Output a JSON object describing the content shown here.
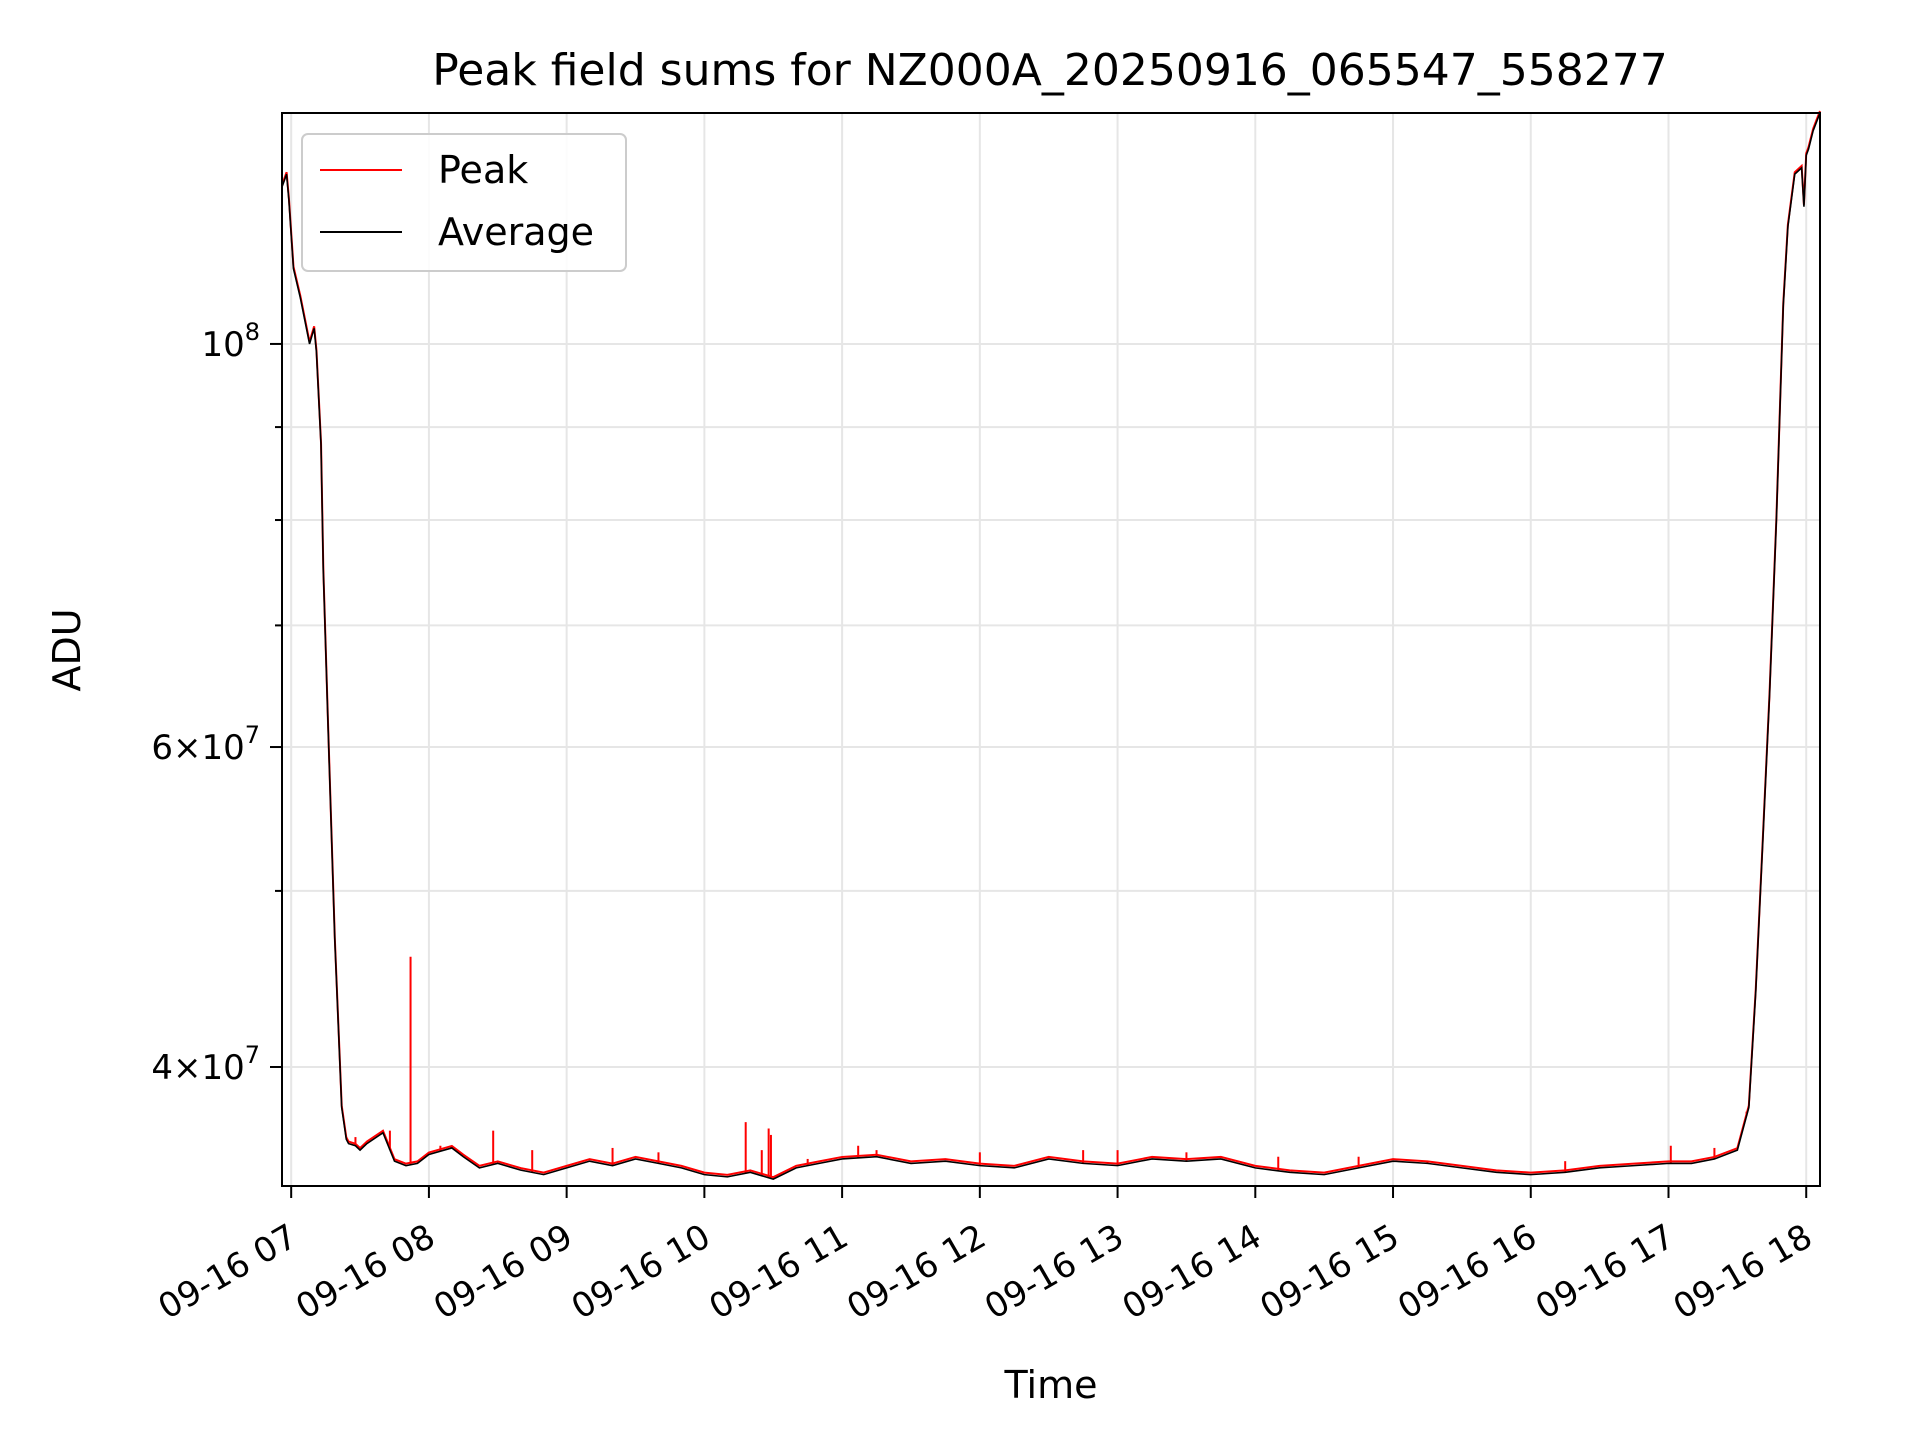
{
  "chart_data": {
    "type": "line",
    "title": "Peak field sums for NZ000A_20250916_065547_558277",
    "xlabel": "Time",
    "ylabel": "ADU",
    "yscale": "log",
    "ylim": [
      34400000,
      134000000
    ],
    "xlim": [
      "2025-09-16 06:56",
      "2025-09-16 18:06"
    ],
    "grid": true,
    "legend_position": "top-left",
    "x_ticks": [
      "09-16 07",
      "09-16 08",
      "09-16 09",
      "09-16 10",
      "09-16 11",
      "09-16 12",
      "09-16 13",
      "09-16 14",
      "09-16 15",
      "09-16 16",
      "09-16 17",
      "09-16 18"
    ],
    "y_major_ticks": [
      {
        "value": 40000000,
        "base": "4×10",
        "exp": "7"
      },
      {
        "value": 60000000,
        "base": "6×10",
        "exp": "7"
      },
      {
        "value": 100000000,
        "base": "10",
        "exp": "8"
      }
    ],
    "y_minor_ticks": [
      50000000,
      70000000,
      80000000,
      90000000
    ],
    "colors": {
      "peak": "#ff0000",
      "average": "#000000"
    },
    "series": [
      {
        "name": "Average",
        "color": "#000000",
        "x": [
          "2025-09-16 06:56",
          "2025-09-16 06:58",
          "2025-09-16 06:59",
          "2025-09-16 07:01",
          "2025-09-16 07:04",
          "2025-09-16 07:08",
          "2025-09-16 07:10",
          "2025-09-16 07:11",
          "2025-09-16 07:13",
          "2025-09-16 07:14",
          "2025-09-16 07:16",
          "2025-09-16 07:19",
          "2025-09-16 07:22",
          "2025-09-16 07:24",
          "2025-09-16 07:25",
          "2025-09-16 07:28",
          "2025-09-16 07:30",
          "2025-09-16 07:33",
          "2025-09-16 07:40",
          "2025-09-16 07:45",
          "2025-09-16 07:50",
          "2025-09-16 07:55",
          "2025-09-16 08:00",
          "2025-09-16 08:10",
          "2025-09-16 08:15",
          "2025-09-16 08:22",
          "2025-09-16 08:30",
          "2025-09-16 08:40",
          "2025-09-16 08:50",
          "2025-09-16 09:00",
          "2025-09-16 09:10",
          "2025-09-16 09:20",
          "2025-09-16 09:30",
          "2025-09-16 09:40",
          "2025-09-16 09:50",
          "2025-09-16 10:00",
          "2025-09-16 10:10",
          "2025-09-16 10:20",
          "2025-09-16 10:30",
          "2025-09-16 10:40",
          "2025-09-16 10:50",
          "2025-09-16 11:00",
          "2025-09-16 11:15",
          "2025-09-16 11:30",
          "2025-09-16 11:45",
          "2025-09-16 12:00",
          "2025-09-16 12:15",
          "2025-09-16 12:30",
          "2025-09-16 12:45",
          "2025-09-16 13:00",
          "2025-09-16 13:15",
          "2025-09-16 13:30",
          "2025-09-16 13:45",
          "2025-09-16 14:00",
          "2025-09-16 14:15",
          "2025-09-16 14:30",
          "2025-09-16 14:45",
          "2025-09-16 15:00",
          "2025-09-16 15:15",
          "2025-09-16 15:30",
          "2025-09-16 15:45",
          "2025-09-16 16:00",
          "2025-09-16 16:15",
          "2025-09-16 16:30",
          "2025-09-16 16:45",
          "2025-09-16 17:00",
          "2025-09-16 17:10",
          "2025-09-16 17:20",
          "2025-09-16 17:30",
          "2025-09-16 17:35",
          "2025-09-16 17:38",
          "2025-09-16 17:41",
          "2025-09-16 17:44",
          "2025-09-16 17:47",
          "2025-09-16 17:50",
          "2025-09-16 17:52",
          "2025-09-16 17:55",
          "2025-09-16 17:58",
          "2025-09-16 17:59",
          "2025-09-16 18:00",
          "2025-09-16 18:01",
          "2025-09-16 18:03",
          "2025-09-16 18:04",
          "2025-09-16 18:06"
        ],
        "y": [
          122000000,
          124000000,
          120000000,
          110000000,
          106000000,
          100000000,
          102000000,
          99000000,
          88000000,
          75000000,
          62000000,
          47000000,
          38000000,
          36500000,
          36300000,
          36200000,
          36000000,
          36300000,
          36800000,
          35500000,
          35300000,
          35400000,
          35800000,
          36100000,
          35700000,
          35200000,
          35400000,
          35100000,
          34900000,
          35200000,
          35500000,
          35300000,
          35600000,
          35400000,
          35200000,
          34900000,
          34800000,
          35000000,
          34700000,
          35200000,
          35400000,
          35600000,
          35700000,
          35400000,
          35500000,
          35300000,
          35200000,
          35600000,
          35400000,
          35300000,
          35600000,
          35500000,
          35600000,
          35200000,
          35000000,
          34900000,
          35200000,
          35500000,
          35400000,
          35200000,
          35000000,
          34900000,
          35000000,
          35200000,
          35300000,
          35400000,
          35400000,
          35600000,
          36000000,
          38000000,
          44000000,
          53000000,
          64000000,
          80000000,
          105000000,
          116000000,
          124000000,
          125000000,
          119000000,
          127000000,
          128000000,
          131000000,
          132000000,
          134000000
        ]
      },
      {
        "name": "Peak",
        "color": "#ff0000",
        "spikes": [
          {
            "x": "2025-09-16 07:28",
            "y": 36600000
          },
          {
            "x": "2025-09-16 07:43",
            "y": 36900000
          },
          {
            "x": "2025-09-16 07:52",
            "y": 46000000
          },
          {
            "x": "2025-09-16 08:00",
            "y": 35800000
          },
          {
            "x": "2025-09-16 08:05",
            "y": 36200000
          },
          {
            "x": "2025-09-16 08:28",
            "y": 36900000
          },
          {
            "x": "2025-09-16 08:45",
            "y": 36000000
          },
          {
            "x": "2025-09-16 09:20",
            "y": 36100000
          },
          {
            "x": "2025-09-16 09:40",
            "y": 35900000
          },
          {
            "x": "2025-09-16 10:18",
            "y": 37300000
          },
          {
            "x": "2025-09-16 10:25",
            "y": 36000000
          },
          {
            "x": "2025-09-16 10:28",
            "y": 37000000
          },
          {
            "x": "2025-09-16 10:29",
            "y": 36700000
          },
          {
            "x": "2025-09-16 10:45",
            "y": 35600000
          },
          {
            "x": "2025-09-16 11:07",
            "y": 36200000
          },
          {
            "x": "2025-09-16 11:15",
            "y": 36000000
          },
          {
            "x": "2025-09-16 12:00",
            "y": 35900000
          },
          {
            "x": "2025-09-16 12:45",
            "y": 36000000
          },
          {
            "x": "2025-09-16 13:00",
            "y": 36000000
          },
          {
            "x": "2025-09-16 13:30",
            "y": 35900000
          },
          {
            "x": "2025-09-16 14:10",
            "y": 35700000
          },
          {
            "x": "2025-09-16 14:45",
            "y": 35700000
          },
          {
            "x": "2025-09-16 15:15",
            "y": 35500000
          },
          {
            "x": "2025-09-16 16:15",
            "y": 35500000
          },
          {
            "x": "2025-09-16 17:01",
            "y": 36200000
          },
          {
            "x": "2025-09-16 17:20",
            "y": 36100000
          },
          {
            "x": "2025-09-16 17:34",
            "y": 37800000
          }
        ]
      }
    ],
    "legend": [
      {
        "label": "Peak",
        "color": "#ff0000"
      },
      {
        "label": "Average",
        "color": "#000000"
      }
    ]
  }
}
